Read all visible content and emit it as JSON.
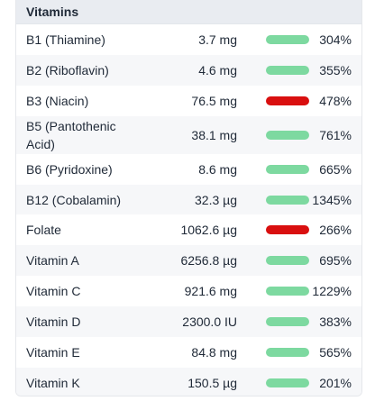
{
  "section_title": "Vitamins",
  "colors": {
    "ok": "#7dd9a0",
    "high": "#d90f0f",
    "header_bg": "#e9ecf1",
    "alt_row": "#f6f7f9"
  },
  "nutrients": [
    {
      "name": "B1 (Thiamine)",
      "amount": "3.7 mg",
      "percent": "304%",
      "status": "ok"
    },
    {
      "name": "B2 (Riboflavin)",
      "amount": "4.6 mg",
      "percent": "355%",
      "status": "ok"
    },
    {
      "name": "B3 (Niacin)",
      "amount": "76.5 mg",
      "percent": "478%",
      "status": "high"
    },
    {
      "name": "B5 (Pantothenic Acid)",
      "amount": "38.1 mg",
      "percent": "761%",
      "status": "ok"
    },
    {
      "name": "B6 (Pyridoxine)",
      "amount": "8.6 mg",
      "percent": "665%",
      "status": "ok"
    },
    {
      "name": "B12 (Cobalamin)",
      "amount": "32.3 µg",
      "percent": "1345%",
      "status": "ok"
    },
    {
      "name": "Folate",
      "amount": "1062.6 µg",
      "percent": "266%",
      "status": "high"
    },
    {
      "name": "Vitamin A",
      "amount": "6256.8 µg",
      "percent": "695%",
      "status": "ok"
    },
    {
      "name": "Vitamin C",
      "amount": "921.6 mg",
      "percent": "1229%",
      "status": "ok"
    },
    {
      "name": "Vitamin D",
      "amount": "2300.0 IU",
      "percent": "383%",
      "status": "ok"
    },
    {
      "name": "Vitamin E",
      "amount": "84.8 mg",
      "percent": "565%",
      "status": "ok"
    },
    {
      "name": "Vitamin K",
      "amount": "150.5 µg",
      "percent": "201%",
      "status": "ok"
    }
  ]
}
